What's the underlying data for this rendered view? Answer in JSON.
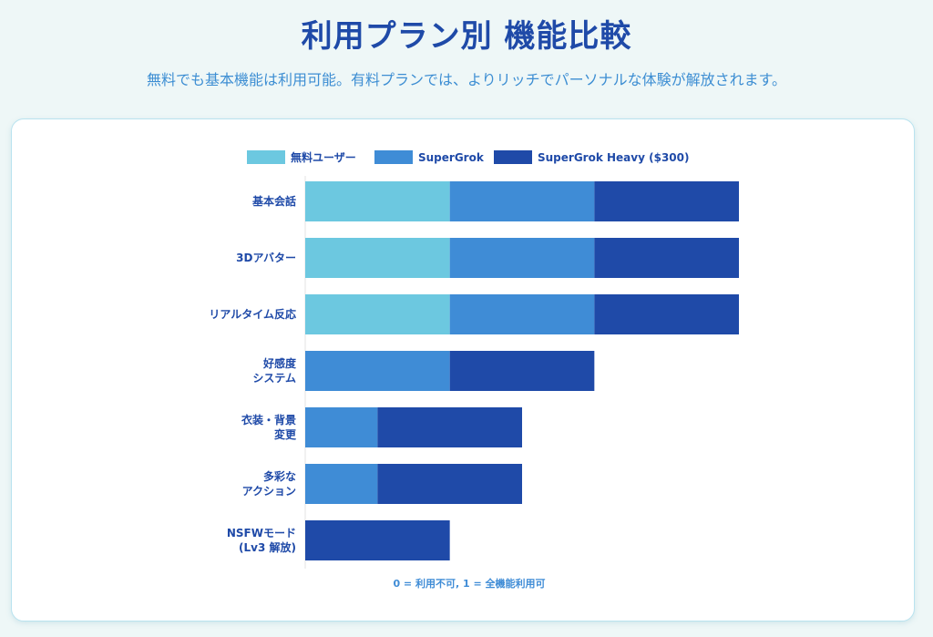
{
  "header": {
    "title": "利用プラン別 機能比較",
    "subtitle": "無料でも基本機能は利用可能。有料プランでは、よりリッチでパーソナルな体験が解放されます。"
  },
  "colors": {
    "free": "#6cc8e0",
    "supergrok": "#3f8cd6",
    "heavy": "#1f4aa8",
    "label": "#1f4aa8"
  },
  "chart_data": {
    "type": "bar",
    "orientation": "horizontal",
    "stacked": true,
    "categories": [
      "基本会話",
      "3Dアバター",
      "リアルタイム反応",
      "好感度\nシステム",
      "衣装・背景\n変更",
      "多彩な\nアクション",
      "NSFWモード\n(Lv3 解放)"
    ],
    "series": [
      {
        "name": "無料ユーザー",
        "values": [
          1,
          1,
          1,
          0,
          0,
          0,
          0
        ]
      },
      {
        "name": "SuperGrok",
        "values": [
          1,
          1,
          1,
          1,
          0.5,
          0.5,
          0
        ]
      },
      {
        "name": "SuperGrok Heavy ($300)",
        "values": [
          1,
          1,
          1,
          1,
          1,
          1,
          1
        ]
      }
    ],
    "xlim": [
      0,
      3
    ],
    "legend_position": "top",
    "grid": false,
    "note": "0 = 利用不可, 1 = 全機能利用可"
  }
}
